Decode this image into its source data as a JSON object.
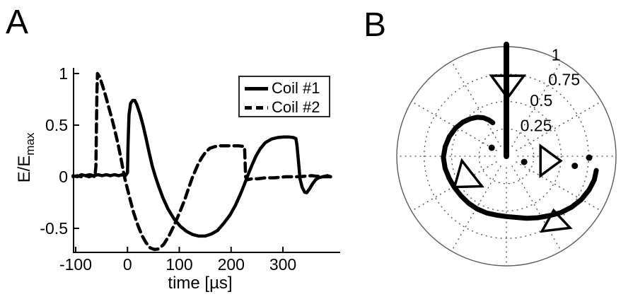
{
  "figure": {
    "background": "#ffffff",
    "ink": "#000000",
    "grid_color": "#4a4a4a"
  },
  "panelA": {
    "label": "A",
    "ylabel_main": "E/E",
    "ylabel_sub": "max",
    "xlabel": "time [µs]",
    "x_tick_labels": [
      "-100",
      "0",
      "100",
      "200",
      "300"
    ],
    "y_tick_labels": [
      "1",
      "0.5",
      "0",
      "-0.5"
    ],
    "legend_items": [
      {
        "label": "Coil #1",
        "style": "solid"
      },
      {
        "label": "Coil #2",
        "style": "dashed"
      }
    ]
  },
  "panelB": {
    "label": "B",
    "ring_labels": [
      {
        "label": "0.25",
        "theta": 46,
        "r": 0.39
      },
      {
        "label": "0.5",
        "theta": 58,
        "r": 0.6
      },
      {
        "label": "0.75",
        "theta": 53,
        "r": 0.875
      },
      {
        "label": "1",
        "theta": 64,
        "r": 1.03
      }
    ]
  },
  "chart_data": [
    {
      "type": "line",
      "title": "",
      "xlabel": "time [µs]",
      "ylabel": "E/E_max",
      "xlim": [
        -105,
        410
      ],
      "ylim": [
        -0.73,
        1.06
      ],
      "x_ticks": [
        -100,
        0,
        100,
        200,
        300
      ],
      "y_ticks": [
        1,
        0.5,
        0,
        -0.5
      ],
      "grid": false,
      "legend_position": "top-right",
      "series": [
        {
          "name": "Coil #1",
          "style": "solid",
          "points": [
            [
              -105,
              0.01
            ],
            [
              -97,
              0
            ],
            [
              -89,
              0.02
            ],
            [
              -81,
              0.01
            ],
            [
              -73,
              0.02
            ],
            [
              -65,
              0.01
            ],
            [
              -57,
              0.02
            ],
            [
              -49,
              0.01
            ],
            [
              -41,
              0.02
            ],
            [
              -33,
              0.01
            ],
            [
              -25,
              0.02
            ],
            [
              -17,
              0.01
            ],
            [
              -10,
              0.02
            ],
            [
              -4,
              0.01
            ],
            [
              0,
              0.04
            ],
            [
              1,
              0.3
            ],
            [
              3,
              0.6
            ],
            [
              6,
              0.71
            ],
            [
              10,
              0.74
            ],
            [
              14,
              0.74
            ],
            [
              18,
              0.7
            ],
            [
              24,
              0.61
            ],
            [
              30,
              0.5
            ],
            [
              36,
              0.37
            ],
            [
              42,
              0.23
            ],
            [
              48,
              0.1
            ],
            [
              54,
              0
            ],
            [
              60,
              -0.09
            ],
            [
              68,
              -0.2
            ],
            [
              78,
              -0.31
            ],
            [
              90,
              -0.41
            ],
            [
              102,
              -0.48
            ],
            [
              114,
              -0.53
            ],
            [
              126,
              -0.56
            ],
            [
              138,
              -0.575
            ],
            [
              150,
              -0.575
            ],
            [
              162,
              -0.555
            ],
            [
              174,
              -0.52
            ],
            [
              186,
              -0.45
            ],
            [
              198,
              -0.37
            ],
            [
              208,
              -0.28
            ],
            [
              218,
              -0.17
            ],
            [
              226,
              -0.07
            ],
            [
              232,
              0.01
            ],
            [
              240,
              0.11
            ],
            [
              248,
              0.2
            ],
            [
              256,
              0.27
            ],
            [
              266,
              0.33
            ],
            [
              278,
              0.365
            ],
            [
              290,
              0.38
            ],
            [
              302,
              0.385
            ],
            [
              312,
              0.385
            ],
            [
              320,
              0.38
            ],
            [
              325,
              0.37
            ],
            [
              327,
              0.31
            ],
            [
              330,
              0.15
            ],
            [
              333,
              -0.02
            ],
            [
              337,
              -0.1
            ],
            [
              342,
              -0.15
            ],
            [
              346,
              -0.155
            ],
            [
              351,
              -0.12
            ],
            [
              357,
              -0.07
            ],
            [
              363,
              -0.03
            ],
            [
              369,
              -0.01
            ],
            [
              377,
              0
            ],
            [
              386,
              0.01
            ],
            [
              392,
              0
            ]
          ]
        },
        {
          "name": "Coil #2",
          "style": "dashed",
          "points": [
            [
              -105,
              0
            ],
            [
              -97,
              0.01
            ],
            [
              -89,
              0
            ],
            [
              -81,
              0.01
            ],
            [
              -74,
              0
            ],
            [
              -68,
              0.01
            ],
            [
              -63,
              0
            ],
            [
              -61,
              0.1
            ],
            [
              -60,
              0.45
            ],
            [
              -59,
              0.8
            ],
            [
              -58,
              1.0
            ],
            [
              -54,
              0.97
            ],
            [
              -48,
              0.88
            ],
            [
              -42,
              0.78
            ],
            [
              -36,
              0.67
            ],
            [
              -30,
              0.56
            ],
            [
              -24,
              0.44
            ],
            [
              -18,
              0.31
            ],
            [
              -13,
              0.19
            ],
            [
              -9,
              0.08
            ],
            [
              -6,
              0
            ],
            [
              -2,
              -0.08
            ],
            [
              4,
              -0.2
            ],
            [
              12,
              -0.35
            ],
            [
              20,
              -0.47
            ],
            [
              28,
              -0.57
            ],
            [
              36,
              -0.64
            ],
            [
              44,
              -0.69
            ],
            [
              52,
              -0.705
            ],
            [
              60,
              -0.7
            ],
            [
              70,
              -0.655
            ],
            [
              80,
              -0.575
            ],
            [
              90,
              -0.47
            ],
            [
              100,
              -0.355
            ],
            [
              110,
              -0.23
            ],
            [
              118,
              -0.11
            ],
            [
              125,
              -0.01
            ],
            [
              131,
              0.06
            ],
            [
              137,
              0.13
            ],
            [
              144,
              0.19
            ],
            [
              151,
              0.24
            ],
            [
              159,
              0.275
            ],
            [
              167,
              0.29
            ],
            [
              176,
              0.3
            ],
            [
              190,
              0.3
            ],
            [
              204,
              0.3
            ],
            [
              214,
              0.3
            ],
            [
              222,
              0.295
            ],
            [
              226,
              0.29
            ],
            [
              227,
              0.15
            ],
            [
              228,
              0
            ],
            [
              230,
              -0.03
            ],
            [
              240,
              -0.02
            ],
            [
              252,
              -0.02
            ],
            [
              266,
              -0.01
            ],
            [
              284,
              -0.01
            ],
            [
              305,
              0
            ],
            [
              330,
              0
            ],
            [
              355,
              0.01
            ],
            [
              375,
              0
            ],
            [
              392,
              0
            ]
          ]
        }
      ]
    },
    {
      "type": "polar-trajectory",
      "rings": [
        0.25,
        0.5,
        0.75,
        1
      ],
      "spoke_step_deg": 30,
      "rlim": [
        0,
        1
      ],
      "trajectories": [
        {
          "name": "radial-up",
          "points_theta_r": [
            [
              90,
              0
            ],
            [
              90,
              1.02
            ]
          ]
        },
        {
          "name": "spiral",
          "points_theta_r": [
            [
              112,
              0.33
            ],
            [
              116,
              0.37
            ],
            [
              121,
              0.41
            ],
            [
              127,
              0.445
            ],
            [
              134,
              0.475
            ],
            [
              142,
              0.505
            ],
            [
              151,
              0.53
            ],
            [
              161,
              0.55
            ],
            [
              171,
              0.565
            ],
            [
              181,
              0.575
            ],
            [
              191,
              0.57
            ],
            [
              201,
              0.56
            ],
            [
              211,
              0.553
            ],
            [
              221,
              0.55
            ],
            [
              231,
              0.55
            ],
            [
              241,
              0.55
            ],
            [
              251,
              0.548
            ],
            [
              261,
              0.545
            ],
            [
              270,
              0.55
            ],
            [
              279,
              0.565
            ],
            [
              288,
              0.595
            ],
            [
              297,
              0.63
            ],
            [
              306,
              0.67
            ],
            [
              314,
              0.715
            ],
            [
              322,
              0.755
            ],
            [
              330,
              0.79
            ],
            [
              338,
              0.815
            ],
            [
              345,
              0.83
            ],
            [
              351,
              0.83
            ]
          ]
        }
      ],
      "arrows": [
        {
          "theta": 89,
          "r": 0.64,
          "point_deg": 180,
          "size": 46
        },
        {
          "theta": 209,
          "r": 0.445,
          "point_deg": 232,
          "size": 46
        },
        {
          "theta": -53,
          "r": 0.735,
          "point_deg": 353,
          "size": 40
        },
        {
          "theta": -6,
          "r": 0.4,
          "point_deg": 90,
          "size": 42
        }
      ],
      "dots": [
        {
          "theta": 150,
          "r": 0.155
        },
        {
          "theta": -18,
          "r": 0.17
        },
        {
          "theta": -8,
          "r": 0.63
        },
        {
          "theta": -1,
          "r": 0.755
        }
      ]
    }
  ]
}
